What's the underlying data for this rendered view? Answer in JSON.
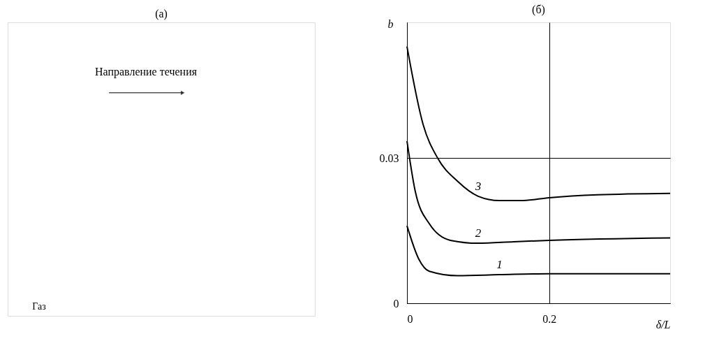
{
  "chart_data": [
    {
      "type": "other",
      "title": "(a)",
      "annotations": [
        "Направление течения",
        "Газ"
      ]
    },
    {
      "type": "line",
      "title": "(б)",
      "xlabel": "δ/L",
      "ylabel": "b",
      "series": [
        {
          "name": "2",
          "color": "#000000",
          "x": [
            0,
            0.0118,
            0.0315,
            0.061,
            0.1,
            0.15,
            0.2,
            0.37
          ],
          "values": [
            0.0335,
            0.023,
            0.0164,
            0.013,
            0.0124,
            0.0127,
            0.013,
            0.0135
          ]
        },
        {
          "name": "1",
          "color": "#000000",
          "x": [
            0,
            0.0167,
            0.0315,
            0.071,
            0.13,
            0.2,
            0.37
          ],
          "values": [
            0.016,
            0.0091,
            0.0066,
            0.0057,
            0.0059,
            0.0061,
            0.0061
          ]
        },
        {
          "name": "3",
          "color": "#000000",
          "x": [
            0,
            0.0227,
            0.043,
            0.071,
            0.1,
            0.13,
            0.16,
            0.2,
            0.268,
            0.37
          ],
          "values": [
            0.053,
            0.0369,
            0.03,
            0.0252,
            0.0221,
            0.0212,
            0.0212,
            0.0218,
            0.0224,
            0.0227
          ]
        }
      ],
      "xlim": [
        0,
        0.37
      ],
      "ylim": [
        0,
        0.058
      ],
      "xticks": [
        0,
        0.2
      ],
      "yticks": [
        0,
        0.03
      ],
      "grid": true,
      "line_style": "solid",
      "marker": "none"
    }
  ]
}
